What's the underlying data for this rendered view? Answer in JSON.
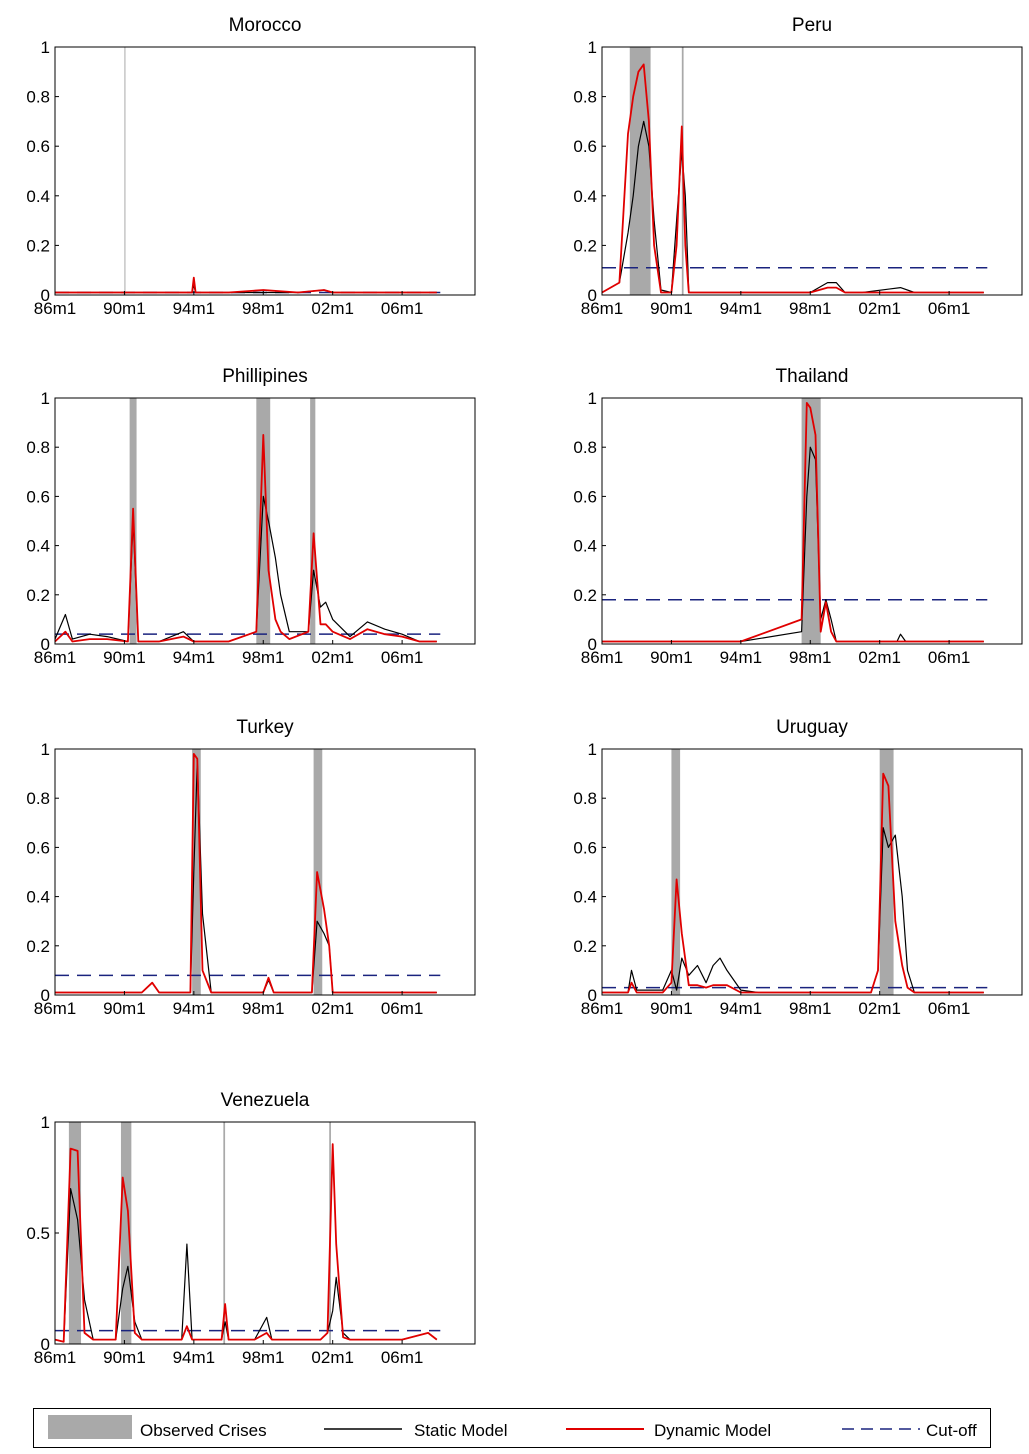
{
  "chart_data": [
    {
      "type": "line",
      "title": "Morocco",
      "ylim": [
        0,
        1
      ],
      "yticks": [
        "0",
        "0.2",
        "0.4",
        "0.6",
        "0.8",
        "1"
      ],
      "xticks": [
        "86m1",
        "90m1",
        "94m1",
        "98m1",
        "02m1",
        "06m1"
      ],
      "cutoff": 0.01,
      "crises": [
        [
          1990.0,
          1990.05
        ]
      ],
      "series": [
        {
          "name": "Static Model",
          "x": [
            1986,
            1988,
            1990,
            1992,
            1993.9,
            1994,
            1994.1,
            1996,
            1998,
            2000,
            2001.5,
            2002,
            2004,
            2006,
            2008
          ],
          "values": [
            0.01,
            0.01,
            0.01,
            0.01,
            0.01,
            0.04,
            0.01,
            0.01,
            0.01,
            0.01,
            0.02,
            0.01,
            0.01,
            0.01,
            0.01
          ]
        },
        {
          "name": "Dynamic Model",
          "x": [
            1986,
            1988,
            1990,
            1992,
            1993.9,
            1994,
            1994.1,
            1996,
            1998,
            2000,
            2001.5,
            2002,
            2004,
            2006,
            2008
          ],
          "values": [
            0.01,
            0.01,
            0.01,
            0.01,
            0.01,
            0.07,
            0.01,
            0.01,
            0.02,
            0.01,
            0.02,
            0.01,
            0.01,
            0.01,
            0.01
          ]
        }
      ]
    },
    {
      "type": "line",
      "title": "Peru",
      "ylim": [
        0,
        1
      ],
      "yticks": [
        "0",
        "0.2",
        "0.4",
        "0.6",
        "0.8",
        "1"
      ],
      "xticks": [
        "86m1",
        "90m1",
        "94m1",
        "98m1",
        "02m1",
        "06m1"
      ],
      "cutoff": 0.11,
      "crises": [
        [
          1987.6,
          1988.8
        ],
        [
          1990.6,
          1990.7
        ]
      ],
      "series": [
        {
          "name": "Static Model",
          "x": [
            1986,
            1987,
            1987.5,
            1987.8,
            1988.1,
            1988.4,
            1988.7,
            1989,
            1989.4,
            1990,
            1990.3,
            1990.6,
            1990.8,
            1991,
            1994,
            1998,
            1999,
            1999.5,
            2000,
            2001,
            2003.2,
            2004,
            2008
          ],
          "values": [
            0.01,
            0.05,
            0.25,
            0.4,
            0.6,
            0.7,
            0.6,
            0.3,
            0.02,
            0.01,
            0.3,
            0.58,
            0.4,
            0.01,
            0.01,
            0.01,
            0.05,
            0.05,
            0.01,
            0.01,
            0.03,
            0.01,
            0.01
          ]
        },
        {
          "name": "Dynamic Model",
          "x": [
            1986,
            1987,
            1987.5,
            1987.8,
            1988.1,
            1988.4,
            1988.7,
            1989,
            1989.4,
            1990,
            1990.3,
            1990.6,
            1990.8,
            1991,
            1994,
            1998,
            1999,
            1999.5,
            2000,
            2001,
            2003.2,
            2004,
            2008
          ],
          "values": [
            0.01,
            0.05,
            0.65,
            0.8,
            0.9,
            0.93,
            0.7,
            0.2,
            0.01,
            0.01,
            0.2,
            0.68,
            0.2,
            0.01,
            0.01,
            0.01,
            0.03,
            0.03,
            0.01,
            0.01,
            0.01,
            0.01,
            0.01
          ]
        }
      ]
    },
    {
      "type": "line",
      "title": "Phillipines",
      "ylim": [
        0,
        1
      ],
      "yticks": [
        "0",
        "0.2",
        "0.4",
        "0.6",
        "0.8",
        "1"
      ],
      "xticks": [
        "86m1",
        "90m1",
        "94m1",
        "98m1",
        "02m1",
        "06m1"
      ],
      "cutoff": 0.04,
      "crises": [
        [
          1990.3,
          1990.7
        ],
        [
          1997.6,
          1998.4
        ],
        [
          2000.7,
          2001.0
        ]
      ],
      "series": [
        {
          "name": "Static Model",
          "x": [
            1986,
            1986.6,
            1987,
            1988,
            1989,
            1990.2,
            1990.5,
            1990.8,
            1992,
            1993.4,
            1994,
            1996,
            1997.6,
            1998,
            1998.3,
            1998.7,
            1999,
            1999.5,
            2000.6,
            2000.9,
            2001.3,
            2001.6,
            2002,
            2003,
            2004,
            2005,
            2006,
            2007,
            2008
          ],
          "values": [
            0.02,
            0.12,
            0.02,
            0.04,
            0.03,
            0.01,
            0.5,
            0.01,
            0.01,
            0.05,
            0.01,
            0.01,
            0.05,
            0.6,
            0.5,
            0.35,
            0.2,
            0.05,
            0.05,
            0.3,
            0.15,
            0.17,
            0.1,
            0.03,
            0.09,
            0.06,
            0.04,
            0.01,
            0.01
          ]
        },
        {
          "name": "Dynamic Model",
          "x": [
            1986,
            1986.6,
            1987,
            1988,
            1989,
            1990.2,
            1990.5,
            1990.8,
            1992,
            1993.4,
            1994,
            1996,
            1997.6,
            1998,
            1998.3,
            1998.7,
            1999,
            1999.5,
            2000.6,
            2000.9,
            2001.3,
            2001.6,
            2002,
            2003,
            2004,
            2005,
            2006,
            2007,
            2008
          ],
          "values": [
            0.01,
            0.05,
            0.01,
            0.02,
            0.02,
            0.01,
            0.55,
            0.01,
            0.01,
            0.03,
            0.01,
            0.01,
            0.05,
            0.85,
            0.3,
            0.1,
            0.05,
            0.02,
            0.05,
            0.45,
            0.08,
            0.08,
            0.05,
            0.02,
            0.06,
            0.04,
            0.03,
            0.01,
            0.01
          ]
        }
      ]
    },
    {
      "type": "line",
      "title": "Thailand",
      "ylim": [
        0,
        1
      ],
      "yticks": [
        "0",
        "0.2",
        "0.4",
        "0.6",
        "0.8",
        "1"
      ],
      "xticks": [
        "86m1",
        "90m1",
        "94m1",
        "98m1",
        "02m1",
        "06m1"
      ],
      "cutoff": 0.18,
      "crises": [
        [
          1997.5,
          1998.6
        ]
      ],
      "series": [
        {
          "name": "Static Model",
          "x": [
            1986,
            1994,
            1997.5,
            1997.8,
            1998,
            1998.3,
            1998.6,
            1998.9,
            1999.2,
            1999.5,
            2000,
            2003,
            2003.2,
            2003.5,
            2008
          ],
          "values": [
            0.01,
            0.01,
            0.05,
            0.6,
            0.8,
            0.75,
            0.1,
            0.18,
            0.1,
            0.01,
            0.01,
            0.01,
            0.04,
            0.01,
            0.01
          ]
        },
        {
          "name": "Dynamic Model",
          "x": [
            1986,
            1994,
            1997.5,
            1997.8,
            1998,
            1998.3,
            1998.6,
            1998.9,
            1999.2,
            1999.5,
            2000,
            2003,
            2003.2,
            2003.5,
            2008
          ],
          "values": [
            0.01,
            0.01,
            0.1,
            0.98,
            0.96,
            0.85,
            0.05,
            0.17,
            0.05,
            0.01,
            0.01,
            0.01,
            0.01,
            0.01,
            0.01
          ]
        }
      ]
    },
    {
      "type": "line",
      "title": "Turkey",
      "ylim": [
        0,
        1
      ],
      "yticks": [
        "0",
        "0.2",
        "0.4",
        "0.6",
        "0.8",
        "1"
      ],
      "xticks": [
        "86m1",
        "90m1",
        "94m1",
        "98m1",
        "02m1",
        "06m1"
      ],
      "cutoff": 0.08,
      "crises": [
        [
          1993.9,
          1994.4
        ],
        [
          2000.9,
          2001.4
        ]
      ],
      "series": [
        {
          "name": "Static Model",
          "x": [
            1986,
            1991,
            1991.6,
            1992,
            1993.8,
            1994.0,
            1994.2,
            1994.5,
            1995,
            1998,
            1998.3,
            1998.6,
            2000.8,
            2001.1,
            2001.5,
            2001.8,
            2002,
            2008
          ],
          "values": [
            0.01,
            0.01,
            0.05,
            0.01,
            0.01,
            0.5,
            0.95,
            0.33,
            0.01,
            0.01,
            0.06,
            0.01,
            0.01,
            0.3,
            0.25,
            0.2,
            0.01,
            0.01
          ]
        },
        {
          "name": "Dynamic Model",
          "x": [
            1986,
            1991,
            1991.6,
            1992,
            1993.8,
            1994.0,
            1994.2,
            1994.5,
            1995,
            1998,
            1998.3,
            1998.6,
            2000.8,
            2001.1,
            2001.5,
            2001.8,
            2002,
            2008
          ],
          "values": [
            0.01,
            0.01,
            0.05,
            0.01,
            0.01,
            0.98,
            0.96,
            0.1,
            0.01,
            0.01,
            0.07,
            0.01,
            0.01,
            0.5,
            0.35,
            0.2,
            0.01,
            0.01
          ]
        }
      ]
    },
    {
      "type": "line",
      "title": "Uruguay",
      "ylim": [
        0,
        1
      ],
      "yticks": [
        "0",
        "0.2",
        "0.4",
        "0.6",
        "0.8",
        "1"
      ],
      "xticks": [
        "86m1",
        "90m1",
        "94m1",
        "98m1",
        "02m1",
        "06m1"
      ],
      "cutoff": 0.03,
      "crises": [
        [
          1990.0,
          1990.5
        ],
        [
          2002.0,
          2002.8
        ]
      ],
      "series": [
        {
          "name": "Static Model",
          "x": [
            1986,
            1987.5,
            1987.7,
            1988,
            1989.5,
            1990,
            1990.3,
            1990.6,
            1991,
            1991.5,
            1992,
            1992.4,
            1992.8,
            1993.2,
            1994,
            1995,
            2001.5,
            2001.9,
            2002.2,
            2002.5,
            2002.9,
            2003.3,
            2003.6,
            2004,
            2008
          ],
          "values": [
            0.01,
            0.01,
            0.1,
            0.02,
            0.02,
            0.1,
            0.02,
            0.15,
            0.08,
            0.12,
            0.05,
            0.12,
            0.15,
            0.1,
            0.02,
            0.01,
            0.01,
            0.1,
            0.68,
            0.6,
            0.65,
            0.4,
            0.1,
            0.01,
            0.01
          ]
        },
        {
          "name": "Dynamic Model",
          "x": [
            1986,
            1987.5,
            1987.7,
            1988,
            1989.5,
            1990,
            1990.3,
            1990.6,
            1991,
            1991.5,
            1992,
            1992.4,
            1992.8,
            1993.2,
            1994,
            1995,
            2001.5,
            2001.9,
            2002.2,
            2002.5,
            2002.9,
            2003.3,
            2003.6,
            2004,
            2008
          ],
          "values": [
            0.01,
            0.01,
            0.05,
            0.01,
            0.01,
            0.05,
            0.47,
            0.25,
            0.04,
            0.04,
            0.03,
            0.04,
            0.04,
            0.04,
            0.01,
            0.01,
            0.01,
            0.1,
            0.9,
            0.85,
            0.3,
            0.12,
            0.03,
            0.01,
            0.01
          ]
        }
      ]
    },
    {
      "type": "line",
      "title": "Venezuela",
      "ylim": [
        0,
        1
      ],
      "yticks": [
        "0",
        "0.5",
        "1"
      ],
      "xticks": [
        "86m1",
        "90m1",
        "94m1",
        "98m1",
        "02m1",
        "06m1"
      ],
      "cutoff": 0.06,
      "crises": [
        [
          1986.8,
          1987.5
        ],
        [
          1989.8,
          1990.4
        ],
        [
          1995.7,
          1995.8
        ],
        [
          2001.8,
          2001.9
        ]
      ],
      "series": [
        {
          "name": "Static Model",
          "x": [
            1986,
            1986.5,
            1986.9,
            1987.3,
            1987.7,
            1988.2,
            1989.5,
            1989.9,
            1990.2,
            1990.6,
            1991,
            1993.3,
            1993.6,
            1993.9,
            1995.6,
            1995.8,
            1996,
            1997.5,
            1998.2,
            1998.5,
            2001.3,
            2001.7,
            2002.0,
            2002.2,
            2002.6,
            2003,
            2006,
            2007.5,
            2008
          ],
          "values": [
            0.02,
            0.01,
            0.7,
            0.56,
            0.2,
            0.02,
            0.02,
            0.25,
            0.35,
            0.1,
            0.02,
            0.02,
            0.45,
            0.02,
            0.02,
            0.1,
            0.02,
            0.02,
            0.12,
            0.02,
            0.02,
            0.05,
            0.15,
            0.3,
            0.05,
            0.02,
            0.02,
            0.05,
            0.02
          ]
        },
        {
          "name": "Dynamic Model",
          "x": [
            1986,
            1986.5,
            1986.9,
            1987.3,
            1987.7,
            1988.2,
            1989.5,
            1989.9,
            1990.2,
            1990.6,
            1991,
            1993.3,
            1993.6,
            1993.9,
            1995.6,
            1995.8,
            1996,
            1997.5,
            1998.2,
            1998.5,
            2001.3,
            2001.7,
            2002.0,
            2002.2,
            2002.6,
            2003,
            2006,
            2007.5,
            2008
          ],
          "values": [
            0.02,
            0.01,
            0.88,
            0.87,
            0.05,
            0.02,
            0.02,
            0.75,
            0.6,
            0.05,
            0.02,
            0.02,
            0.08,
            0.02,
            0.02,
            0.18,
            0.02,
            0.02,
            0.05,
            0.02,
            0.02,
            0.05,
            0.9,
            0.45,
            0.03,
            0.02,
            0.02,
            0.05,
            0.02
          ]
        }
      ]
    }
  ],
  "legend": {
    "observed": "Observed Crises",
    "static": "Static Model",
    "dynamic": "Dynamic Model",
    "cutoff": "Cut-off"
  },
  "colors": {
    "crisis": "#a9a9a9",
    "static": "#000000",
    "dynamic": "#e00000",
    "cutoff": "#1a237e"
  }
}
